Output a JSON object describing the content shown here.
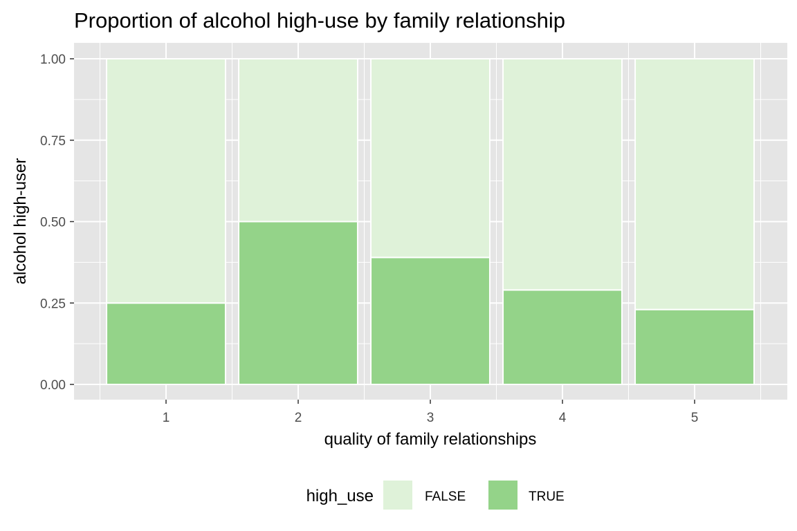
{
  "chart_data": {
    "type": "bar",
    "stacked": true,
    "title": "Proportion of alcohol high-use by family relationship",
    "xlabel": "quality of family relationships",
    "ylabel": "alcohol high-user",
    "categories": [
      "1",
      "2",
      "3",
      "4",
      "5"
    ],
    "ylim": [
      0,
      1
    ],
    "yticks": [
      "0.00",
      "0.25",
      "0.50",
      "0.75",
      "1.00"
    ],
    "series": [
      {
        "name": "FALSE",
        "color": "#dff2d9",
        "values": [
          0.75,
          0.5,
          0.61,
          0.71,
          0.77
        ]
      },
      {
        "name": "TRUE",
        "color": "#94d389",
        "values": [
          0.25,
          0.5,
          0.39,
          0.29,
          0.23
        ]
      }
    ],
    "legend": {
      "title": "high_use",
      "position": "bottom"
    },
    "grid": true,
    "panel_background": "#e5e5e5"
  }
}
